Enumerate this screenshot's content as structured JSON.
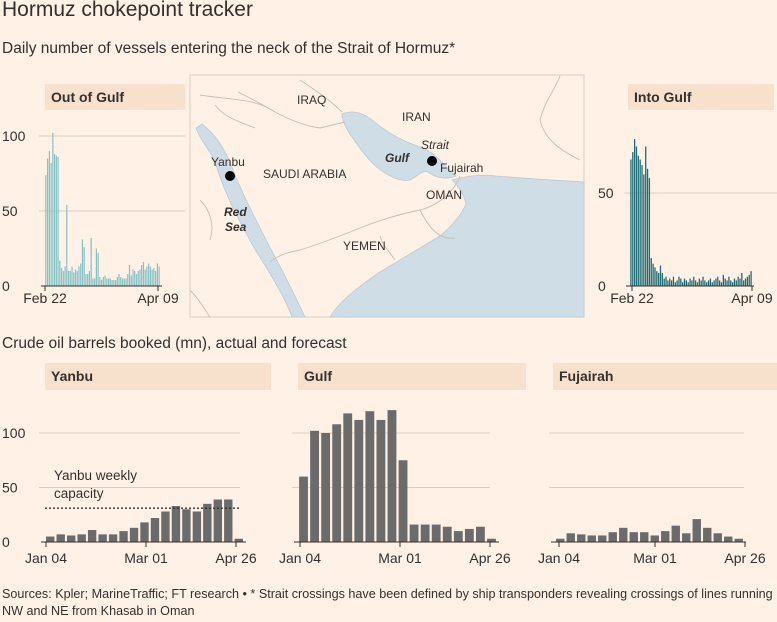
{
  "title": "Hormuz chokepoint tracker",
  "subtitle_top": "Daily number of vessels entering the neck of the Strait of Hormuz*",
  "subtitle_bottom": "Crude oil barrels booked (mn), actual and forecast",
  "footer": "Sources: Kpler; MarineTraffic; FT research • * Strait crossings have been defined by ship transponders revealing crossings of lines running NW and NE from Khasab in Oman",
  "colors": {
    "background": "#fff1e5",
    "panel_header": "#f7e1cd",
    "teal_bar": "#86c2c6",
    "teal_dark": "#1f6b75",
    "grey_bar": "#6b6b6b",
    "map_water": "#cfdde7",
    "map_land": "#fff1e5",
    "axis": "#33302e",
    "grid": "#d9cdc1"
  },
  "map": {
    "countries": [
      "IRAQ",
      "IRAN",
      "SAUDI ARABIA",
      "OMAN",
      "YEMEN"
    ],
    "water_labels": [
      "Red Sea",
      "Gulf",
      "Strait"
    ],
    "places": [
      "Yanbu",
      "Fujairah"
    ]
  },
  "chart_data": [
    {
      "type": "bar",
      "panel": "Out of Gulf",
      "title": "Out of Gulf",
      "x_tick_labels": [
        "Feb 22",
        "Apr 09"
      ],
      "y_ticks": [
        0,
        50,
        100
      ],
      "ylim": [
        0,
        120
      ],
      "color": "#86c2c6",
      "values": [
        74,
        85,
        90,
        82,
        102,
        88,
        87,
        86,
        17,
        12,
        10,
        13,
        54,
        10,
        10,
        13,
        9,
        11,
        10,
        13,
        15,
        31,
        26,
        8,
        8,
        10,
        32,
        5,
        5,
        25,
        22,
        6,
        4,
        6,
        7,
        5,
        5,
        5,
        4,
        4,
        4,
        6,
        8,
        6,
        5,
        5,
        5,
        8,
        14,
        7,
        11,
        10,
        8,
        10,
        11,
        14,
        16,
        11,
        13,
        15,
        13,
        11,
        12,
        10,
        15,
        13
      ]
    },
    {
      "type": "bar",
      "panel": "Into Gulf",
      "title": "Into Gulf",
      "x_tick_labels": [
        "Feb 22",
        "Apr 09"
      ],
      "y_ticks": [
        0,
        50
      ],
      "ylim": [
        0,
        90
      ],
      "color": "#1f6b75",
      "values": [
        68,
        72,
        79,
        75,
        70,
        68,
        65,
        60,
        75,
        63,
        58,
        15,
        12,
        10,
        8,
        7,
        11,
        7,
        4,
        5,
        3,
        4,
        3,
        5,
        2,
        3,
        5,
        4,
        2,
        4,
        3,
        2,
        4,
        3,
        5,
        3,
        2,
        4,
        3,
        5,
        3,
        2,
        3,
        4,
        2,
        3,
        4,
        5,
        3,
        2,
        6,
        4,
        3,
        5,
        3,
        2,
        4,
        3,
        5,
        4,
        7,
        3,
        4,
        5,
        6,
        8
      ]
    },
    {
      "type": "bar",
      "panel": "Yanbu",
      "title": "Yanbu",
      "x_tick_labels": [
        "Jan 04",
        "Mar 01",
        "Apr 26"
      ],
      "y_ticks": [
        0,
        50,
        100
      ],
      "ylim": [
        0,
        125
      ],
      "color": "#6b6b6b",
      "annotation": {
        "label_line1": "Yanbu weekly",
        "label_line2": "capacity",
        "value": 31
      },
      "values": [
        5,
        7,
        6,
        7,
        11,
        7,
        7,
        10,
        13,
        18,
        22,
        28,
        33,
        30,
        28,
        35,
        39,
        39,
        3
      ]
    },
    {
      "type": "bar",
      "panel": "Gulf",
      "title": "Gulf",
      "x_tick_labels": [
        "Jan 04",
        "Mar 01",
        "Apr 26"
      ],
      "y_ticks": [
        0,
        50,
        100
      ],
      "ylim": [
        0,
        125
      ],
      "color": "#6b6b6b",
      "values": [
        60,
        102,
        100,
        108,
        118,
        112,
        120,
        112,
        121,
        75,
        16,
        16,
        16,
        14,
        10,
        12,
        14,
        3
      ]
    },
    {
      "type": "bar",
      "panel": "Fujairah",
      "title": "Fujairah",
      "x_tick_labels": [
        "Jan 04",
        "Mar 01",
        "Apr 26"
      ],
      "y_ticks": [
        0,
        50,
        100
      ],
      "ylim": [
        0,
        125
      ],
      "color": "#6b6b6b",
      "values": [
        3,
        8,
        7,
        6,
        6,
        9,
        13,
        9,
        9,
        6,
        10,
        15,
        8,
        21,
        13,
        8,
        5,
        3
      ]
    }
  ]
}
